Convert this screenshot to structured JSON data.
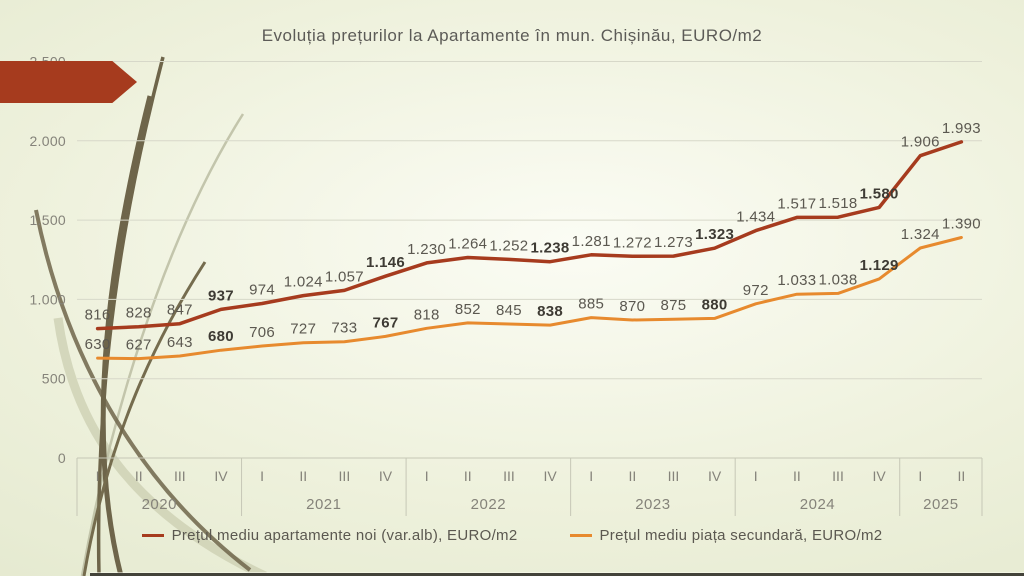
{
  "slide": {
    "title": "Evoluția prețurilor la Apartamente în mun. Chișinău, EURO/m2"
  },
  "colors": {
    "accent_red": "#a63b1e",
    "accent_orange": "#e78a2e",
    "label_text": "#5b5850",
    "label_text_bold": "#3e3b34",
    "axis_text": "#85837a",
    "gridline": "#d7d8c9",
    "axis_line": "#c6c7b6"
  },
  "legend": {
    "items": [
      {
        "label": "Prețul mediu apartamente noi (var.alb), EURO/m2",
        "color": "#a63b1e"
      },
      {
        "label": "Prețul mediu piața secundară, EURO/m2",
        "color": "#e78a2e"
      }
    ]
  },
  "chart_data": {
    "type": "line",
    "title": "Evoluția prețurilor la Apartamente în mun. Chișinău, EURO/m2",
    "ylabel": "EURO/m2",
    "ylim": [
      0,
      2500
    ],
    "yticks": [
      0,
      500,
      1000,
      1500,
      2000,
      2500
    ],
    "ytick_labels": [
      "0",
      "500",
      "1.000",
      "1.500",
      "2.000",
      "2.500"
    ],
    "grid": true,
    "legend_position": "bottom",
    "number_format": "thousands separated by dot",
    "bold_quarter": "IV",
    "years": [
      {
        "label": "2020",
        "quarters": [
          "I",
          "II",
          "III",
          "IV"
        ]
      },
      {
        "label": "2021",
        "quarters": [
          "I",
          "II",
          "III",
          "IV"
        ]
      },
      {
        "label": "2022",
        "quarters": [
          "I",
          "II",
          "III",
          "IV"
        ]
      },
      {
        "label": "2023",
        "quarters": [
          "I",
          "II",
          "III",
          "IV"
        ]
      },
      {
        "label": "2024",
        "quarters": [
          "I",
          "II",
          "III",
          "IV"
        ]
      },
      {
        "label": "2025",
        "quarters": [
          "I",
          "II"
        ]
      }
    ],
    "series": [
      {
        "name": "Prețul mediu apartamente noi (var.alb), EURO/m2",
        "color": "#a63b1e",
        "values": [
          816,
          828,
          847,
          937,
          974,
          1024,
          1057,
          1146,
          1230,
          1264,
          1252,
          1238,
          1281,
          1272,
          1273,
          1323,
          1434,
          1517,
          1518,
          1580,
          1906,
          1993
        ]
      },
      {
        "name": "Prețul mediu piața secundară, EURO/m2",
        "color": "#e78a2e",
        "values": [
          630,
          627,
          643,
          680,
          706,
          727,
          733,
          767,
          818,
          852,
          845,
          838,
          885,
          870,
          875,
          880,
          972,
          1033,
          1038,
          1129,
          1324,
          1390
        ]
      }
    ]
  }
}
